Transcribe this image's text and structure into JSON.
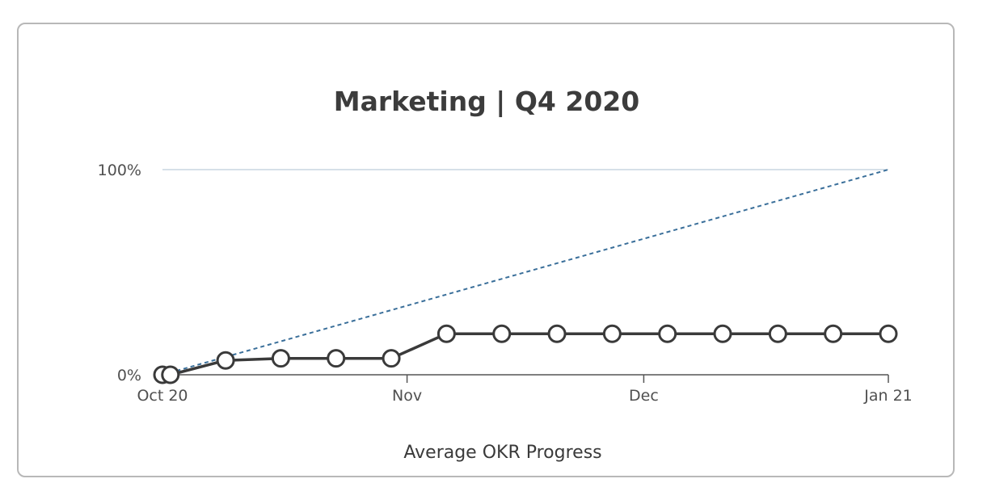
{
  "chart_data": {
    "type": "line",
    "title": "Marketing | Q4 2020",
    "xlabel": "Average OKR Progress",
    "ylabel": "",
    "x_range": [
      "2020-10-01",
      "2021-01-01"
    ],
    "ylim": [
      0,
      100
    ],
    "y_ticks": [
      {
        "value": 0,
        "label": "0%"
      },
      {
        "value": 100,
        "label": "100%"
      }
    ],
    "x_ticks": [
      {
        "date": "2020-10-01",
        "label": "Oct 20"
      },
      {
        "date": "2020-11-01",
        "label": "Nov"
      },
      {
        "date": "2020-12-01",
        "label": "Dec"
      },
      {
        "date": "2021-01-01",
        "label": "Jan 21"
      }
    ],
    "grid": {
      "horizontal_at": [
        100
      ]
    },
    "legend": "none",
    "series": [
      {
        "style": "solid",
        "color": "#3a3a3a",
        "marker": "hollow-circle",
        "points": [
          {
            "x": "2020-10-01",
            "y": 0
          },
          {
            "x": "2020-10-02",
            "y": 0
          },
          {
            "x": "2020-10-09",
            "y": 7
          },
          {
            "x": "2020-10-16",
            "y": 8
          },
          {
            "x": "2020-10-23",
            "y": 8
          },
          {
            "x": "2020-10-30",
            "y": 8
          },
          {
            "x": "2020-11-06",
            "y": 20
          },
          {
            "x": "2020-11-13",
            "y": 20
          },
          {
            "x": "2020-11-20",
            "y": 20
          },
          {
            "x": "2020-11-27",
            "y": 20
          },
          {
            "x": "2020-12-04",
            "y": 20
          },
          {
            "x": "2020-12-11",
            "y": 20
          },
          {
            "x": "2020-12-18",
            "y": 20
          },
          {
            "x": "2020-12-25",
            "y": 20
          },
          {
            "x": "2021-01-01",
            "y": 20
          }
        ]
      },
      {
        "style": "dashed",
        "color": "#3a6f9a",
        "marker": "none",
        "points": [
          {
            "x": "2020-10-01",
            "y": 0
          },
          {
            "x": "2021-01-01",
            "y": 100
          }
        ]
      }
    ],
    "colors": {
      "gridline": "#c9d6e0",
      "axis": "#555555",
      "marker_fill": "#ffffff"
    }
  }
}
